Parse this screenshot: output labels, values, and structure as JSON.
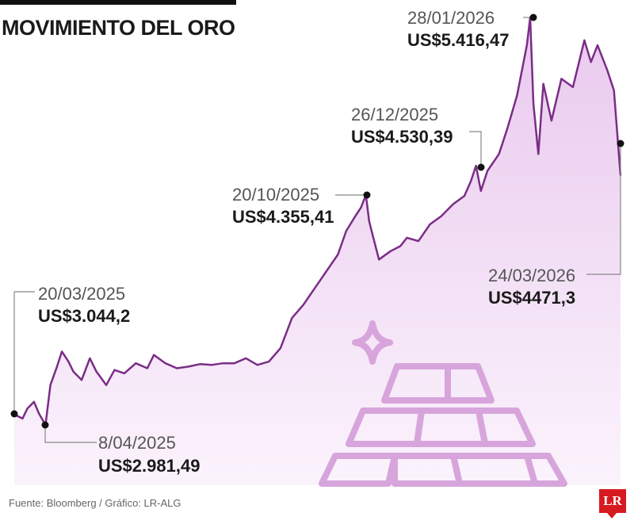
{
  "title": "MOVIMIENTO DEL ORO",
  "source": "Fuente: Bloomberg / Gráfico: LR-ALG",
  "logo_text": "LR",
  "colors": {
    "line": "#7a2d86",
    "fill_top": "#e9c9ee",
    "fill_bottom": "#fbf3fc",
    "decor": "#d7a5dc",
    "logo": "#d71920"
  },
  "chart_data": {
    "type": "area",
    "title": "MOVIMIENTO DEL ORO",
    "xlabel": "",
    "ylabel": "",
    "ylim": [
      2650,
      5550
    ],
    "xlim": [
      "2025-03-20",
      "2026-03-24"
    ],
    "axes_visible": false,
    "grid": false,
    "series": [
      {
        "x": [
          "2025-03-20",
          "2025-03-25",
          "2025-03-28",
          "2025-04-01",
          "2025-04-04",
          "2025-04-08",
          "2025-04-11",
          "2025-04-15",
          "2025-04-18",
          "2025-04-22",
          "2025-04-25",
          "2025-04-30",
          "2025-05-05",
          "2025-05-09",
          "2025-05-15",
          "2025-05-20",
          "2025-05-26",
          "2025-06-02",
          "2025-06-09",
          "2025-06-13",
          "2025-06-20",
          "2025-06-27",
          "2025-07-04",
          "2025-07-11",
          "2025-07-18",
          "2025-07-25",
          "2025-08-01",
          "2025-08-08",
          "2025-08-15",
          "2025-08-22",
          "2025-08-29",
          "2025-09-05",
          "2025-09-12",
          "2025-09-19",
          "2025-09-26",
          "2025-10-03",
          "2025-10-08",
          "2025-10-13",
          "2025-10-17",
          "2025-10-20",
          "2025-10-22",
          "2025-10-24",
          "2025-10-28",
          "2025-11-04",
          "2025-11-10",
          "2025-11-14",
          "2025-11-21",
          "2025-11-28",
          "2025-12-05",
          "2025-12-12",
          "2025-12-19",
          "2025-12-23",
          "2025-12-26",
          "2025-12-29",
          "2026-01-02",
          "2026-01-09",
          "2026-01-14",
          "2026-01-20",
          "2026-01-23",
          "2026-01-26",
          "2026-01-28",
          "2026-01-30",
          "2026-02-02",
          "2026-02-05",
          "2026-02-10",
          "2026-02-16",
          "2026-02-23",
          "2026-03-02",
          "2026-03-06",
          "2026-03-10",
          "2026-03-16",
          "2026-03-20",
          "2026-03-24"
        ],
        "values": [
          3044.2,
          3020,
          3080,
          3120,
          3050,
          2981.49,
          3220,
          3330,
          3420,
          3360,
          3300,
          3250,
          3380,
          3300,
          3220,
          3310,
          3290,
          3350,
          3320,
          3400,
          3350,
          3320,
          3330,
          3345,
          3340,
          3350,
          3350,
          3380,
          3340,
          3360,
          3440,
          3620,
          3700,
          3800,
          3900,
          4000,
          4140,
          4220,
          4280,
          4355.41,
          4200,
          4120,
          3970,
          4020,
          4050,
          4100,
          4080,
          4180,
          4230,
          4300,
          4350,
          4440,
          4530.39,
          4380,
          4500,
          4600,
          4750,
          4950,
          5100,
          5250,
          5416.47,
          4900,
          4600,
          5020,
          4800,
          5050,
          5000,
          5280,
          5150,
          5250,
          5100,
          4980,
          4471.3
        ]
      }
    ],
    "annotations": [
      {
        "date": "20/03/2025",
        "value": "US$3.044,2"
      },
      {
        "date": "8/04/2025",
        "value": "US$2.981,49"
      },
      {
        "date": "20/10/2025",
        "value": "US$4.355,41"
      },
      {
        "date": "26/12/2025",
        "value": "US$4.530,39"
      },
      {
        "date": "28/01/2026",
        "value": "US$5.416,47"
      },
      {
        "date": "24/03/2026",
        "value": "US$4471,3"
      }
    ]
  }
}
